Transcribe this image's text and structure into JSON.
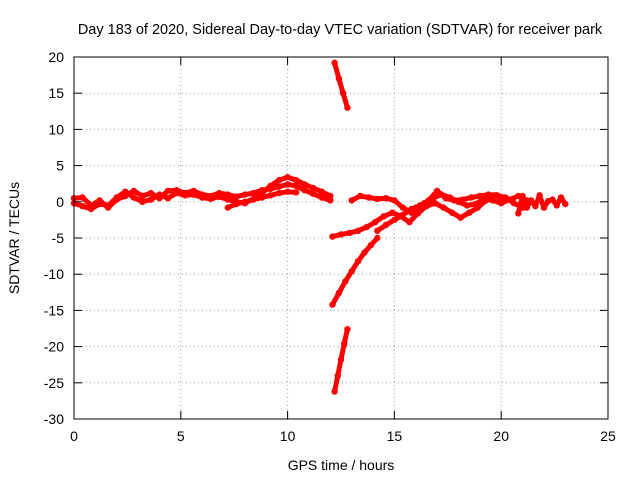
{
  "chart_data": {
    "type": "scatter",
    "title": "Day 183 of 2020, Sidereal Day-to-day VTEC variation (SDTVAR) for receiver park",
    "xlabel": "GPS time / hours",
    "ylabel": "SDTVAR / TECUs",
    "xlim": [
      0,
      25
    ],
    "ylim": [
      -30,
      20
    ],
    "x_ticks": [
      0,
      5,
      10,
      15,
      20,
      25
    ],
    "y_ticks": [
      -30,
      -25,
      -20,
      -15,
      -10,
      -5,
      0,
      5,
      10,
      15,
      20
    ],
    "grid": true,
    "series_color": "#ff0000",
    "series": [
      {
        "x": [
          0.0,
          0.4,
          0.8,
          1.2,
          1.6,
          2.0,
          2.4,
          2.8,
          3.2,
          3.6,
          4.0,
          4.4,
          4.8,
          5.2,
          5.6,
          6.0,
          6.4,
          6.8,
          7.2,
          7.6,
          8.0,
          8.4,
          8.8,
          9.2,
          9.6,
          10.0,
          10.4,
          10.8,
          11.2,
          11.6,
          12.0
        ],
        "y": [
          0.5,
          0.6,
          -0.5,
          0.2,
          -0.8,
          0.3,
          0.8,
          1.5,
          0.8,
          1.2,
          0.5,
          1.5,
          1.6,
          1.2,
          1.5,
          1.0,
          0.8,
          1.2,
          1.0,
          0.7,
          1.0,
          1.2,
          1.6,
          1.8,
          2.1,
          2.4,
          2.2,
          1.6,
          1.1,
          0.6,
          0.2
        ]
      },
      {
        "x": [
          0.0,
          0.4,
          0.8,
          1.2,
          1.6,
          2.0,
          2.4,
          2.8,
          3.2,
          3.6,
          4.0,
          4.4,
          4.8,
          5.2,
          5.6,
          6.0,
          6.4,
          6.8,
          7.2,
          7.6,
          8.0,
          8.4,
          8.8,
          9.2,
          9.6,
          10.0,
          10.4,
          10.8,
          11.2,
          11.6,
          12.0
        ],
        "y": [
          -0.2,
          -0.6,
          -1.0,
          -0.3,
          -0.5,
          0.6,
          1.4,
          0.6,
          0.0,
          0.3,
          1.0,
          0.5,
          1.2,
          0.9,
          1.0,
          0.6,
          0.4,
          0.7,
          0.3,
          0.0,
          -0.2,
          0.4,
          1.2,
          2.2,
          3.0,
          3.4,
          3.0,
          2.4,
          1.9,
          1.4,
          0.8
        ]
      },
      {
        "x": [
          7.2,
          7.6,
          8.0,
          8.4,
          8.8,
          9.2,
          9.6,
          10.0,
          10.4
        ],
        "y": [
          -0.8,
          -0.3,
          0.0,
          0.3,
          0.6,
          0.9,
          1.2,
          1.4,
          1.3
        ]
      },
      {
        "x": [
          12.2,
          12.4,
          12.6,
          12.8
        ],
        "y": [
          19.2,
          17.0,
          15.0,
          13.0
        ]
      },
      {
        "x": [
          12.1,
          12.4,
          12.7,
          13.0,
          13.3,
          13.6,
          13.9,
          14.2
        ],
        "y": [
          -14.2,
          -12.6,
          -11.0,
          -9.6,
          -8.2,
          -7.0,
          -6.0,
          -5.0
        ]
      },
      {
        "x": [
          12.2,
          12.35,
          12.5,
          12.65,
          12.8
        ],
        "y": [
          -26.2,
          -24.0,
          -21.8,
          -19.6,
          -17.6
        ]
      },
      {
        "x": [
          12.1,
          12.5,
          12.9,
          13.3,
          13.7,
          14.1,
          14.5,
          14.9,
          15.3,
          15.7,
          16.1,
          16.5,
          16.9,
          17.3,
          17.7,
          18.1,
          18.5,
          18.9,
          19.3,
          19.7,
          20.0
        ],
        "y": [
          -4.8,
          -4.5,
          -4.3,
          -4.0,
          -3.5,
          -2.8,
          -2.0,
          -1.5,
          -2.0,
          -2.8,
          -1.6,
          -0.6,
          -0.2,
          -0.8,
          -1.5,
          -2.2,
          -1.5,
          -0.8,
          0.2,
          0.9,
          0.5
        ]
      },
      {
        "x": [
          13.0,
          13.4,
          13.8,
          14.2,
          14.6,
          15.0,
          15.4,
          15.8,
          16.2,
          16.6,
          17.0,
          17.4,
          17.8,
          18.2,
          18.6,
          19.0,
          19.4,
          19.8,
          20.2,
          20.6,
          21.0
        ],
        "y": [
          0.2,
          0.8,
          0.6,
          0.4,
          0.5,
          0.2,
          -0.8,
          -1.5,
          -0.5,
          0.2,
          1.5,
          0.5,
          0.2,
          0.3,
          0.6,
          0.8,
          1.0,
          0.9,
          0.6,
          -0.2,
          -0.8
        ]
      },
      {
        "x": [
          14.2,
          14.6,
          15.0,
          15.4,
          15.8
        ],
        "y": [
          -4.0,
          -3.2,
          -2.5,
          -1.8,
          -1.0
        ]
      },
      {
        "x": [
          16.0,
          16.4,
          16.8,
          17.2,
          17.6,
          18.0,
          18.4,
          18.8,
          19.2,
          19.6,
          20.0,
          20.4,
          20.8,
          21.2
        ],
        "y": [
          -0.8,
          -0.2,
          0.5,
          1.0,
          0.6,
          0.0,
          -0.5,
          -0.3,
          0.4,
          0.2,
          -0.2,
          0.3,
          0.8,
          0.2
        ]
      },
      {
        "x": [
          20.8,
          21.0,
          21.2,
          21.4,
          21.6,
          21.8,
          22.0,
          22.2,
          22.4,
          22.6,
          22.8,
          23.0
        ],
        "y": [
          -1.6,
          0.8,
          -0.8,
          0.2,
          -0.6,
          0.9,
          -0.8,
          0.1,
          0.3,
          -0.5,
          0.6,
          -0.3
        ]
      }
    ]
  }
}
